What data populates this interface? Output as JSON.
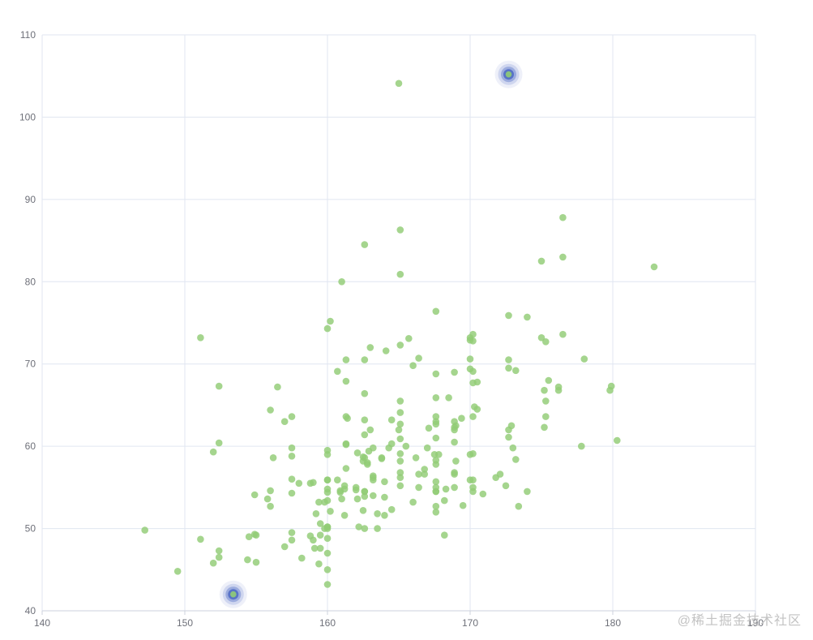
{
  "watermark": "@稀土掘金技术社区",
  "chart_data": {
    "type": "scatter",
    "title": "",
    "xlabel": "",
    "ylabel": "",
    "xlim": [
      140,
      190
    ],
    "ylim": [
      40,
      110
    ],
    "x_ticks": [
      140,
      150,
      160,
      170,
      180,
      190
    ],
    "y_ticks": [
      40,
      50,
      60,
      70,
      80,
      90,
      100,
      110
    ],
    "grid": true,
    "legend": false,
    "background_color": "#ffffff",
    "gridline_color": "#e0e6f1",
    "label_color": "#6e7079",
    "point_color": "#91cc75",
    "effect_color": "#5470c6",
    "series": [
      {
        "name": "scatter",
        "type": "scatter",
        "color": "#91cc75",
        "points": [
          [
            161.2,
            51.6
          ],
          [
            167.5,
            59.0
          ],
          [
            159.5,
            49.2
          ],
          [
            157.0,
            63.0
          ],
          [
            155.8,
            53.6
          ],
          [
            170.0,
            59.0
          ],
          [
            159.1,
            47.6
          ],
          [
            166.0,
            69.8
          ],
          [
            176.2,
            66.8
          ],
          [
            160.2,
            75.2
          ],
          [
            172.5,
            55.2
          ],
          [
            170.9,
            54.2
          ],
          [
            172.9,
            62.5
          ],
          [
            153.4,
            42.0
          ],
          [
            160.0,
            50.0
          ],
          [
            147.2,
            49.8
          ],
          [
            168.2,
            49.2
          ],
          [
            175.0,
            73.2
          ],
          [
            157.0,
            47.8
          ],
          [
            167.6,
            68.8
          ],
          [
            159.5,
            50.6
          ],
          [
            175.0,
            82.5
          ],
          [
            166.8,
            57.2
          ],
          [
            176.5,
            87.8
          ],
          [
            170.2,
            72.8
          ],
          [
            174.0,
            54.5
          ],
          [
            173.0,
            59.8
          ],
          [
            179.9,
            67.3
          ],
          [
            170.5,
            67.8
          ],
          [
            160.0,
            47.0
          ],
          [
            154.4,
            46.2
          ],
          [
            162.0,
            55.0
          ],
          [
            176.5,
            83.0
          ],
          [
            160.0,
            54.4
          ],
          [
            152.0,
            45.8
          ],
          [
            162.1,
            53.6
          ],
          [
            170.0,
            73.2
          ],
          [
            160.2,
            52.1
          ],
          [
            161.3,
            67.9
          ],
          [
            166.4,
            56.6
          ],
          [
            168.9,
            62.3
          ],
          [
            163.8,
            58.5
          ],
          [
            167.6,
            54.5
          ],
          [
            160.0,
            50.2
          ],
          [
            161.3,
            60.3
          ],
          [
            167.6,
            58.3
          ],
          [
            165.1,
            56.2
          ],
          [
            160.0,
            50.2
          ],
          [
            170.0,
            72.9
          ],
          [
            157.5,
            59.8
          ],
          [
            167.6,
            61.0
          ],
          [
            160.7,
            69.1
          ],
          [
            163.2,
            55.9
          ],
          [
            152.4,
            46.5
          ],
          [
            157.5,
            54.3
          ],
          [
            168.3,
            54.8
          ],
          [
            180.3,
            60.7
          ],
          [
            165.5,
            60.0
          ],
          [
            165.0,
            62.0
          ],
          [
            164.5,
            60.3
          ],
          [
            156.0,
            52.7
          ],
          [
            160.0,
            74.3
          ],
          [
            163.0,
            62.0
          ],
          [
            165.7,
            73.1
          ],
          [
            161.0,
            80.0
          ],
          [
            162.0,
            54.7
          ],
          [
            166.0,
            53.2
          ],
          [
            174.0,
            75.7
          ],
          [
            172.7,
            61.1
          ],
          [
            167.6,
            55.7
          ],
          [
            151.1,
            48.7
          ],
          [
            164.5,
            52.3
          ],
          [
            163.5,
            50.0
          ],
          [
            152.0,
            59.3
          ],
          [
            169.0,
            62.5
          ],
          [
            164.0,
            55.7
          ],
          [
            161.2,
            54.8
          ],
          [
            155.0,
            45.9
          ],
          [
            170.0,
            70.6
          ],
          [
            176.2,
            67.2
          ],
          [
            170.0,
            69.4
          ],
          [
            162.5,
            58.2
          ],
          [
            170.3,
            64.8
          ],
          [
            164.1,
            71.6
          ],
          [
            169.5,
            52.8
          ],
          [
            163.2,
            59.8
          ],
          [
            154.5,
            49.0
          ],
          [
            159.8,
            50.0
          ],
          [
            173.2,
            69.2
          ],
          [
            170.0,
            55.9
          ],
          [
            161.4,
            63.4
          ],
          [
            169.0,
            58.2
          ],
          [
            166.2,
            58.6
          ],
          [
            159.4,
            45.7
          ],
          [
            162.5,
            52.2
          ],
          [
            159.0,
            48.6
          ],
          [
            162.8,
            57.8
          ],
          [
            159.0,
            55.6
          ],
          [
            179.8,
            66.8
          ],
          [
            162.9,
            59.4
          ],
          [
            161.0,
            53.6
          ],
          [
            151.1,
            73.2
          ],
          [
            168.2,
            53.4
          ],
          [
            168.9,
            69.0
          ],
          [
            173.2,
            58.4
          ],
          [
            171.8,
            56.2
          ],
          [
            178.0,
            70.6
          ],
          [
            164.3,
            59.8
          ],
          [
            163.0,
            72.0
          ],
          [
            168.5,
            65.9
          ],
          [
            166.8,
            56.6
          ],
          [
            172.7,
            105.2
          ],
          [
            163.5,
            51.8
          ],
          [
            169.4,
            63.4
          ],
          [
            167.8,
            59.0
          ],
          [
            159.5,
            47.6
          ],
          [
            167.6,
            63.0
          ],
          [
            161.2,
            55.2
          ],
          [
            160.0,
            45.0
          ],
          [
            163.2,
            54.0
          ],
          [
            162.2,
            50.2
          ],
          [
            161.3,
            60.2
          ],
          [
            149.5,
            44.8
          ],
          [
            157.5,
            58.8
          ],
          [
            163.2,
            56.4
          ],
          [
            172.7,
            62.0
          ],
          [
            155.0,
            49.2
          ],
          [
            156.5,
            67.2
          ],
          [
            164.0,
            53.8
          ],
          [
            160.9,
            54.4
          ],
          [
            162.8,
            58.0
          ],
          [
            167.0,
            59.8
          ],
          [
            160.0,
            54.8
          ],
          [
            160.0,
            43.2
          ],
          [
            168.9,
            60.5
          ],
          [
            158.2,
            46.4
          ],
          [
            156.0,
            64.4
          ],
          [
            160.0,
            48.8
          ],
          [
            167.1,
            62.2
          ],
          [
            158.0,
            55.5
          ],
          [
            167.6,
            57.8
          ],
          [
            156.0,
            54.6
          ],
          [
            162.1,
            59.2
          ],
          [
            173.4,
            52.7
          ],
          [
            159.8,
            53.2
          ],
          [
            170.5,
            64.5
          ],
          [
            159.2,
            51.8
          ],
          [
            157.5,
            56.0
          ],
          [
            161.3,
            63.6
          ],
          [
            162.6,
            63.2
          ],
          [
            160.0,
            59.5
          ],
          [
            168.9,
            56.8
          ],
          [
            165.1,
            64.1
          ],
          [
            162.6,
            50.0
          ],
          [
            165.1,
            72.3
          ],
          [
            166.4,
            55.0
          ],
          [
            160.0,
            55.9
          ],
          [
            152.4,
            60.4
          ],
          [
            170.2,
            69.1
          ],
          [
            162.6,
            84.5
          ],
          [
            170.2,
            55.9
          ],
          [
            158.8,
            55.5
          ],
          [
            172.7,
            69.5
          ],
          [
            167.6,
            76.4
          ],
          [
            162.6,
            61.4
          ],
          [
            167.6,
            65.9
          ],
          [
            156.2,
            58.6
          ],
          [
            175.2,
            66.8
          ],
          [
            172.1,
            56.6
          ],
          [
            162.6,
            58.6
          ],
          [
            160.0,
            55.9
          ],
          [
            165.1,
            59.1
          ],
          [
            182.9,
            81.8
          ],
          [
            166.4,
            70.7
          ],
          [
            165.1,
            56.8
          ],
          [
            177.8,
            60.0
          ],
          [
            165.1,
            58.2
          ],
          [
            175.3,
            72.7
          ],
          [
            154.9,
            54.1
          ],
          [
            158.8,
            49.1
          ],
          [
            172.7,
            75.9
          ],
          [
            168.9,
            55.0
          ],
          [
            161.3,
            57.3
          ],
          [
            167.6,
            55.0
          ],
          [
            165.1,
            65.5
          ],
          [
            175.3,
            65.5
          ],
          [
            157.5,
            48.6
          ],
          [
            163.8,
            58.6
          ],
          [
            167.6,
            63.6
          ],
          [
            165.1,
            55.2
          ],
          [
            165.1,
            62.7
          ],
          [
            168.9,
            56.6
          ],
          [
            162.6,
            53.9
          ],
          [
            164.5,
            63.2
          ],
          [
            176.5,
            73.6
          ],
          [
            168.9,
            62.0
          ],
          [
            175.3,
            63.6
          ],
          [
            159.4,
            53.2
          ],
          [
            160.0,
            53.4
          ],
          [
            170.2,
            55.0
          ],
          [
            162.6,
            70.5
          ],
          [
            167.6,
            54.5
          ],
          [
            162.6,
            54.5
          ],
          [
            160.7,
            55.9
          ],
          [
            160.0,
            59.0
          ],
          [
            157.5,
            63.6
          ],
          [
            162.6,
            54.5
          ],
          [
            152.4,
            47.3
          ],
          [
            170.2,
            67.7
          ],
          [
            165.1,
            80.9
          ],
          [
            172.7,
            70.5
          ],
          [
            165.1,
            60.9
          ],
          [
            170.2,
            63.6
          ],
          [
            170.2,
            54.5
          ],
          [
            170.2,
            59.1
          ],
          [
            161.3,
            70.5
          ],
          [
            167.6,
            52.7
          ],
          [
            167.6,
            62.7
          ],
          [
            165.1,
            86.3
          ],
          [
            162.6,
            66.4
          ],
          [
            152.4,
            67.3
          ],
          [
            168.9,
            63.0
          ],
          [
            170.2,
            73.6
          ],
          [
            175.2,
            62.3
          ],
          [
            175.5,
            68.0
          ],
          [
            157.5,
            49.5
          ],
          [
            164.0,
            51.6
          ],
          [
            160.9,
            54.6
          ],
          [
            163.2,
            56.2
          ],
          [
            162.5,
            58.7
          ],
          [
            167.6,
            52.0
          ],
          [
            154.9,
            49.3
          ],
          [
            165.0,
            104.1
          ]
        ]
      },
      {
        "name": "effect",
        "type": "effectScatter",
        "color": "#5470c6",
        "points": [
          [
            172.7,
            105.2
          ],
          [
            153.4,
            42.0
          ]
        ]
      }
    ]
  }
}
